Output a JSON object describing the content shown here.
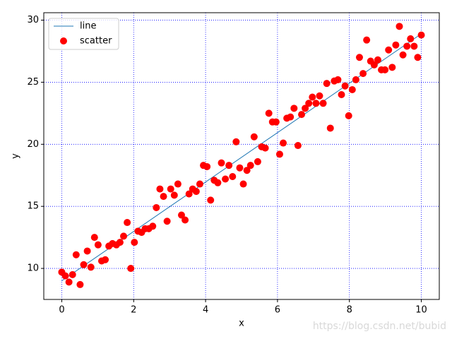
{
  "chart_data": {
    "type": "scatter",
    "xlabel": "x",
    "ylabel": "y",
    "xlim": [
      -0.5,
      10.5
    ],
    "ylim": [
      7.5,
      30.6
    ],
    "xticks": [
      0,
      2,
      4,
      6,
      8,
      10
    ],
    "yticks": [
      10,
      15,
      20,
      25,
      30
    ],
    "grid": true,
    "grid_color": "#0000ff",
    "legend": "upper-left",
    "annotation": "https://blog.csdn.net/bubid",
    "series": [
      {
        "name": "line",
        "type": "line",
        "color": "#1f77b4",
        "x": [
          0,
          10
        ],
        "values": [
          9,
          28.9
        ]
      },
      {
        "name": "scatter",
        "type": "scatter",
        "color": "#ff0000",
        "x": [
          0,
          0.1,
          0.2,
          0.3,
          0.4,
          0.51,
          0.61,
          0.71,
          0.81,
          0.91,
          1.01,
          1.11,
          1.21,
          1.31,
          1.41,
          1.52,
          1.62,
          1.72,
          1.82,
          1.92,
          2.02,
          2.12,
          2.22,
          2.32,
          2.42,
          2.53,
          2.63,
          2.73,
          2.83,
          2.93,
          3.03,
          3.13,
          3.23,
          3.33,
          3.43,
          3.54,
          3.64,
          3.74,
          3.84,
          3.94,
          4.04,
          4.14,
          4.24,
          4.34,
          4.44,
          4.55,
          4.65,
          4.75,
          4.85,
          4.95,
          5.05,
          5.15,
          5.25,
          5.35,
          5.45,
          5.56,
          5.66,
          5.76,
          5.86,
          5.96,
          6.06,
          6.16,
          6.26,
          6.36,
          6.46,
          6.57,
          6.67,
          6.77,
          6.87,
          6.97,
          7.07,
          7.17,
          7.27,
          7.37,
          7.47,
          7.58,
          7.68,
          7.78,
          7.88,
          7.98,
          8.08,
          8.18,
          8.28,
          8.38,
          8.48,
          8.59,
          8.69,
          8.79,
          8.89,
          8.99,
          9.09,
          9.19,
          9.29,
          9.39,
          9.49,
          9.6,
          9.7,
          9.8,
          9.9,
          10
        ],
        "values": [
          9.7,
          9.4,
          8.9,
          9.5,
          11.1,
          8.7,
          10.3,
          11.4,
          10.1,
          12.5,
          11.9,
          10.6,
          10.7,
          11.8,
          12.0,
          11.9,
          12.1,
          12.6,
          13.7,
          10.0,
          12.1,
          13.0,
          12.9,
          13.2,
          13.2,
          13.4,
          14.9,
          16.4,
          15.8,
          13.8,
          16.4,
          15.9,
          16.8,
          14.3,
          13.9,
          16.0,
          16.4,
          16.2,
          16.8,
          18.3,
          18.2,
          15.5,
          17.1,
          16.9,
          18.5,
          17.2,
          18.3,
          17.4,
          20.2,
          18.1,
          16.8,
          17.9,
          18.3,
          20.6,
          18.6,
          19.8,
          19.7,
          22.5,
          21.8,
          21.8,
          19.2,
          20.1,
          22.1,
          22.2,
          22.9,
          19.9,
          22.4,
          22.9,
          23.3,
          23.8,
          23.3,
          23.9,
          23.3,
          24.9,
          21.3,
          25.1,
          25.2,
          24.0,
          24.7,
          22.3,
          24.4,
          25.2,
          27.0,
          25.7,
          28.4,
          26.7,
          26.4,
          26.8,
          26.0,
          26.0,
          27.6,
          26.2,
          28.0,
          29.5,
          27.2,
          27.9,
          28.5,
          27.9,
          27.0,
          28.8
        ]
      }
    ]
  }
}
